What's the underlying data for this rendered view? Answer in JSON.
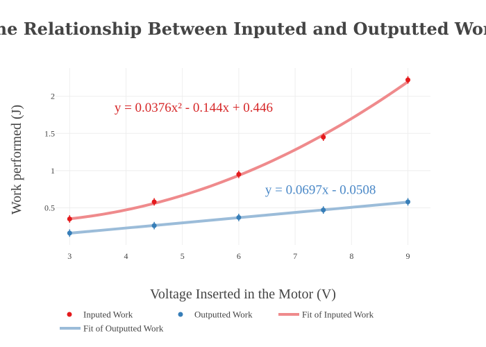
{
  "chart_data": {
    "type": "scatter",
    "title": "The Relationship Between Inputed and Outputted Work",
    "xlabel": "Voltage Inserted in the Motor (V)",
    "ylabel": "Work performed (J)",
    "xlim": [
      2.75,
      9.4
    ],
    "ylim": [
      0.0,
      2.38
    ],
    "x_ticks": [
      3,
      4,
      5,
      6,
      7,
      8,
      9
    ],
    "y_ticks": [
      0.5,
      1,
      1.5,
      2
    ],
    "y_tick_labels": [
      "0.5",
      "1",
      "1.5",
      "2"
    ],
    "grid": true,
    "legend_position": "bottom",
    "series": [
      {
        "name": "Inputed Work",
        "kind": "points",
        "color": "#e41a1c",
        "x": [
          3,
          4.5,
          6,
          7.5,
          9
        ],
        "y": [
          0.35,
          0.58,
          0.95,
          1.45,
          2.22
        ],
        "error": [
          0.05,
          0.05,
          0.05,
          0.05,
          0.05
        ]
      },
      {
        "name": "Outputted Work",
        "kind": "points",
        "color": "#377eb8",
        "x": [
          3,
          4.5,
          6,
          7.5,
          9
        ],
        "y": [
          0.16,
          0.26,
          0.37,
          0.47,
          0.58
        ],
        "error": [
          0.05,
          0.05,
          0.05,
          0.05,
          0.05
        ]
      },
      {
        "name": "Fit of Inputed Work",
        "kind": "fit-line",
        "color": "#ef8a8c",
        "equation": {
          "a": 0.0376,
          "b": -0.144,
          "c": 0.446
        },
        "x_range": [
          3,
          9
        ]
      },
      {
        "name": "Fit of Outputted Work",
        "kind": "fit-line",
        "color": "#9bbcd9",
        "equation": {
          "a": 0,
          "b": 0.0697,
          "c": -0.0508
        },
        "x_range": [
          3,
          9
        ]
      }
    ],
    "annotations": [
      {
        "text": "y = 0.0376x² - 0.144x + 0.446",
        "color": "#d62728",
        "x": 5.2,
        "y": 1.79
      },
      {
        "text": "y = 0.0697x - 0.0508",
        "color": "#4a88c7",
        "x": 7.45,
        "y": 0.685
      }
    ]
  }
}
